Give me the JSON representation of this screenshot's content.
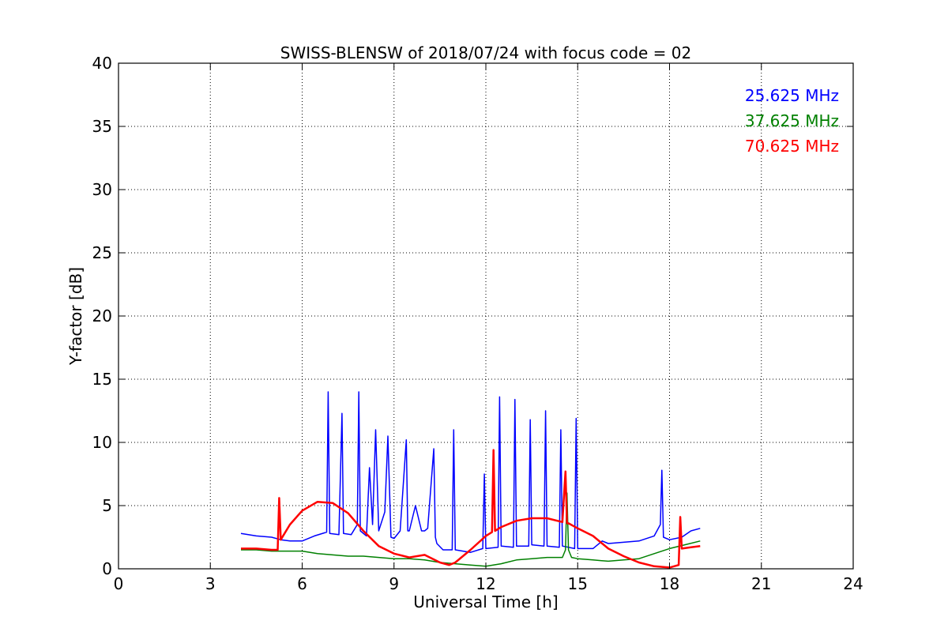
{
  "chart_data": {
    "type": "line",
    "title": "SWISS-BLENSW of 2018/07/24 with focus code = 02",
    "xlabel": "Universal Time [h]",
    "ylabel": "Y-factor [dB]",
    "xlim": [
      0,
      24
    ],
    "ylim": [
      0,
      40
    ],
    "xticks": [
      0,
      3,
      6,
      9,
      12,
      15,
      18,
      21,
      24
    ],
    "yticks": [
      0,
      5,
      10,
      15,
      20,
      25,
      30,
      35,
      40
    ],
    "grid": true,
    "legend_position": "top-right",
    "series": [
      {
        "name": "25.625 MHz",
        "color": "#0000ff",
        "x": [
          4.0,
          4.5,
          5.0,
          5.3,
          5.6,
          6.0,
          6.4,
          6.8,
          6.85,
          6.9,
          7.2,
          7.3,
          7.35,
          7.6,
          7.8,
          7.85,
          7.9,
          8.1,
          8.2,
          8.3,
          8.4,
          8.5,
          8.7,
          8.8,
          8.9,
          9.0,
          9.2,
          9.4,
          9.45,
          9.5,
          9.7,
          9.9,
          10.0,
          10.1,
          10.3,
          10.35,
          10.4,
          10.6,
          10.9,
          10.95,
          11.0,
          11.5,
          11.9,
          11.95,
          12.0,
          12.4,
          12.45,
          12.5,
          12.9,
          12.95,
          13.0,
          13.4,
          13.45,
          13.5,
          13.9,
          13.95,
          14.0,
          14.4,
          14.45,
          14.5,
          14.9,
          14.95,
          15.0,
          15.5,
          15.8,
          16.0,
          16.5,
          17.0,
          17.5,
          17.7,
          17.75,
          17.8,
          18.0,
          18.4,
          18.7,
          19.0
        ],
        "values": [
          2.8,
          2.6,
          2.5,
          2.3,
          2.2,
          2.2,
          2.6,
          2.9,
          14.0,
          2.8,
          2.7,
          12.3,
          2.8,
          2.7,
          3.5,
          14.0,
          3.0,
          2.6,
          8.0,
          3.5,
          11.0,
          3.0,
          4.5,
          10.5,
          2.5,
          2.4,
          3.0,
          10.2,
          3.0,
          3.0,
          5.0,
          3.0,
          3.0,
          3.2,
          9.5,
          2.5,
          2.0,
          1.5,
          1.5,
          11.0,
          1.5,
          1.3,
          1.6,
          7.5,
          1.6,
          1.7,
          13.6,
          1.8,
          1.7,
          13.4,
          1.8,
          1.8,
          11.8,
          1.9,
          1.8,
          12.5,
          1.8,
          1.7,
          11.0,
          1.8,
          1.6,
          11.9,
          1.6,
          1.6,
          2.2,
          2.0,
          2.1,
          2.2,
          2.6,
          3.5,
          7.8,
          2.5,
          2.3,
          2.5,
          3.0,
          3.2
        ]
      },
      {
        "name": "37.625 MHz",
        "color": "#008000",
        "x": [
          4.0,
          4.5,
          5.0,
          5.3,
          6.0,
          6.5,
          7.0,
          7.5,
          8.0,
          8.5,
          9.0,
          9.5,
          10.0,
          10.5,
          11.0,
          11.5,
          12.0,
          12.5,
          13.0,
          13.5,
          14.0,
          14.5,
          14.6,
          14.65,
          14.7,
          14.8,
          15.0,
          15.5,
          16.0,
          16.5,
          17.0,
          17.5,
          18.0,
          18.5,
          19.0
        ],
        "values": [
          1.5,
          1.5,
          1.4,
          1.4,
          1.4,
          1.2,
          1.1,
          1.0,
          1.0,
          0.9,
          0.8,
          0.8,
          0.7,
          0.5,
          0.4,
          0.3,
          0.2,
          0.4,
          0.7,
          0.8,
          0.9,
          0.9,
          1.5,
          6.0,
          1.5,
          0.9,
          0.8,
          0.7,
          0.6,
          0.7,
          0.8,
          1.2,
          1.6,
          1.9,
          2.2
        ]
      },
      {
        "name": "70.625 MHz",
        "color": "#ff0000",
        "x": [
          4.0,
          4.5,
          5.0,
          5.2,
          5.25,
          5.3,
          5.6,
          6.0,
          6.5,
          7.0,
          7.5,
          8.0,
          8.5,
          9.0,
          9.5,
          10.0,
          10.5,
          10.8,
          11.0,
          11.5,
          12.0,
          12.2,
          12.25,
          12.3,
          12.5,
          13.0,
          13.5,
          14.0,
          14.5,
          14.6,
          14.65,
          14.7,
          15.0,
          15.5,
          16.0,
          16.5,
          17.0,
          17.5,
          18.0,
          18.3,
          18.35,
          18.4,
          18.7,
          19.0
        ],
        "values": [
          1.6,
          1.6,
          1.5,
          1.5,
          5.6,
          2.3,
          3.5,
          4.6,
          5.3,
          5.2,
          4.4,
          3.0,
          1.8,
          1.2,
          0.9,
          1.1,
          0.5,
          0.3,
          0.5,
          1.5,
          2.6,
          2.9,
          9.4,
          3.0,
          3.3,
          3.8,
          4.0,
          4.0,
          3.7,
          7.7,
          3.6,
          3.6,
          3.2,
          2.6,
          1.6,
          1.0,
          0.5,
          0.2,
          0.1,
          0.3,
          4.1,
          1.6,
          1.7,
          1.8
        ]
      }
    ]
  }
}
